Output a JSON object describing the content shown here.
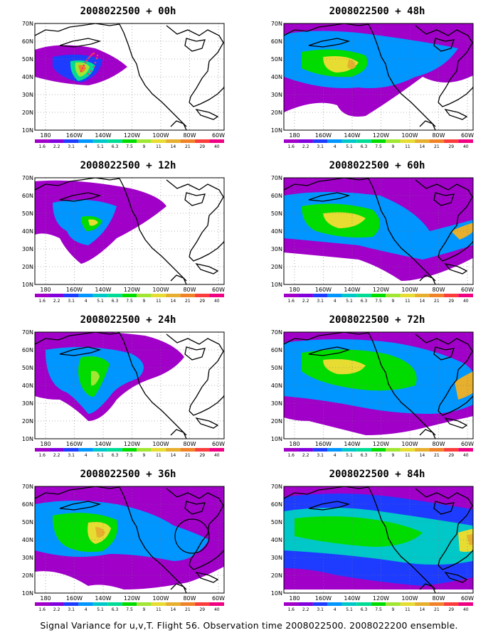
{
  "panels": [
    {
      "id": "p00",
      "title": "2008022500 + 00h"
    },
    {
      "id": "p48",
      "title": "2008022500 + 48h"
    },
    {
      "id": "p12",
      "title": "2008022500 + 12h"
    },
    {
      "id": "p60",
      "title": "2008022500 + 60h"
    },
    {
      "id": "p24",
      "title": "2008022500 + 24h"
    },
    {
      "id": "p72",
      "title": "2008022500 + 72h"
    },
    {
      "id": "p36",
      "title": "2008022500 + 36h"
    },
    {
      "id": "p84",
      "title": "2008022500 + 84h"
    }
  ],
  "lat_labels": [
    "70N",
    "60N",
    "50N",
    "40N",
    "30N",
    "20N",
    "10N"
  ],
  "lon_labels": [
    "180",
    "160W",
    "140W",
    "120W",
    "100W",
    "80W",
    "60W"
  ],
  "colorbar": {
    "levels": [
      "1.6",
      "2.2",
      "3.1",
      "4",
      "5.1",
      "6.3",
      "7.5",
      "9",
      "11",
      "14",
      "21",
      "29",
      "40"
    ],
    "colors": [
      "#a000c8",
      "#8200dc",
      "#1e3cff",
      "#0096ff",
      "#00c8c8",
      "#00dc96",
      "#00dc00",
      "#a0e632",
      "#e6dc32",
      "#e6af2d",
      "#f08228",
      "#fa3c3c",
      "#f00082"
    ]
  },
  "caption": "Signal Variance for u,v,T. Flight 56. Observation time 2008022500. 2008022200 ensemble."
}
